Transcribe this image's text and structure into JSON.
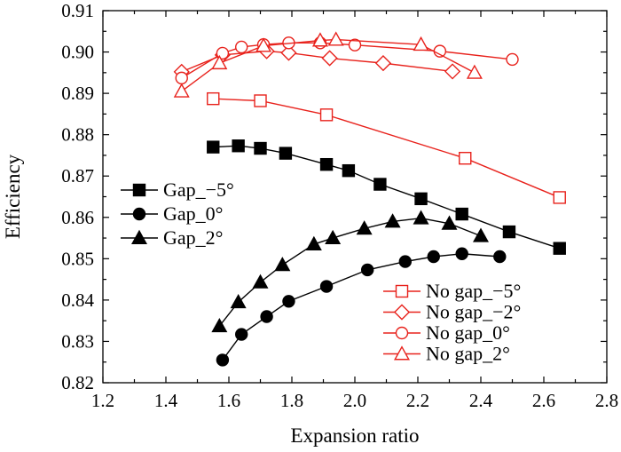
{
  "chart_data": {
    "type": "line",
    "xlabel": "Expansion ratio",
    "ylabel": "Efficiency",
    "xlim": [
      1.2,
      2.8
    ],
    "ylim": [
      0.82,
      0.91
    ],
    "xticks": [
      "1.2",
      "1.4",
      "1.6",
      "1.8",
      "2.0",
      "2.2",
      "2.4",
      "2.6",
      "2.8"
    ],
    "yticks": [
      "0.82",
      "0.83",
      "0.84",
      "0.85",
      "0.86",
      "0.87",
      "0.88",
      "0.89",
      "0.90",
      "0.91"
    ],
    "grid": false,
    "series": [
      {
        "name": "Gap_−5°",
        "color": "#000000",
        "marker": "square",
        "filled": true,
        "x": [
          1.55,
          1.63,
          1.7,
          1.78,
          1.91,
          1.98,
          2.08,
          2.21,
          2.34,
          2.49,
          2.65
        ],
        "y": [
          0.877,
          0.8773,
          0.8767,
          0.8755,
          0.8728,
          0.8713,
          0.868,
          0.8645,
          0.8608,
          0.8565,
          0.8525
        ]
      },
      {
        "name": "Gap_0°",
        "color": "#000000",
        "marker": "circle",
        "filled": true,
        "x": [
          1.58,
          1.64,
          1.72,
          1.79,
          1.91,
          2.04,
          2.16,
          2.25,
          2.34,
          2.46
        ],
        "y": [
          0.8255,
          0.8317,
          0.836,
          0.8397,
          0.8433,
          0.8473,
          0.8493,
          0.8505,
          0.8512,
          0.8505
        ]
      },
      {
        "name": "Gap_2°",
        "color": "#000000",
        "marker": "triangle",
        "filled": true,
        "x": [
          1.57,
          1.63,
          1.7,
          1.77,
          1.87,
          1.93,
          2.03,
          2.12,
          2.21,
          2.3,
          2.4
        ],
        "y": [
          0.8337,
          0.8395,
          0.8443,
          0.8485,
          0.8535,
          0.855,
          0.8573,
          0.859,
          0.8598,
          0.8585,
          0.8555
        ]
      },
      {
        "name": "No gap_−5°",
        "color": "#e8221c",
        "marker": "square",
        "filled": false,
        "x": [
          1.55,
          1.7,
          1.91,
          2.35,
          2.65
        ],
        "y": [
          0.8887,
          0.8882,
          0.8848,
          0.8743,
          0.8648
        ]
      },
      {
        "name": "No gap_−2°",
        "color": "#e8221c",
        "marker": "diamond",
        "filled": false,
        "x": [
          1.45,
          1.58,
          1.72,
          1.79,
          1.92,
          2.09,
          2.31
        ],
        "y": [
          0.8952,
          0.8993,
          0.9002,
          0.8998,
          0.8985,
          0.8973,
          0.8953
        ]
      },
      {
        "name": "No gap_0°",
        "color": "#e8221c",
        "marker": "circle",
        "filled": false,
        "x": [
          1.45,
          1.58,
          1.64,
          1.71,
          1.79,
          1.89,
          2.0,
          2.27,
          2.5
        ],
        "y": [
          0.8937,
          0.8997,
          0.9012,
          0.9018,
          0.9022,
          0.9022,
          0.9017,
          0.9002,
          0.8982
        ]
      },
      {
        "name": "No gap_2°",
        "color": "#e8221c",
        "marker": "triangle",
        "filled": false,
        "x": [
          1.45,
          1.57,
          1.71,
          1.89,
          1.94,
          2.21,
          2.38
        ],
        "y": [
          0.8905,
          0.8973,
          0.9015,
          0.9028,
          0.903,
          0.9018,
          0.895
        ]
      }
    ],
    "legends": [
      {
        "placement": "left",
        "entries": [
          "Gap_−5°",
          "Gap_0°",
          "Gap_2°"
        ]
      },
      {
        "placement": "bottom-right",
        "entries": [
          "No gap_−5°",
          "No gap_−2°",
          "No gap_0°",
          "No gap_2°"
        ]
      }
    ]
  }
}
